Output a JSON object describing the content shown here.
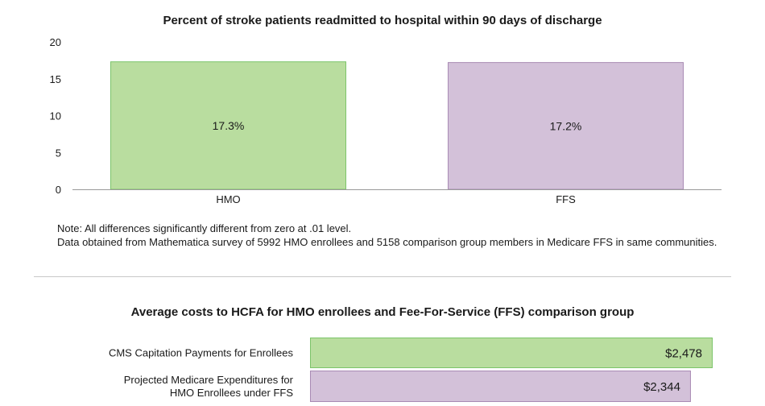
{
  "colors": {
    "green": "#b9dd9f",
    "green_border": "#7cc46a",
    "purple": "#d3c1d9",
    "purple_border": "#a98bb4",
    "axis": "#9a9a9a"
  },
  "chart_data": [
    {
      "type": "bar",
      "title": "Percent of stroke patients readmitted to hospital within 90 days of discharge",
      "categories": [
        "HMO",
        "FFS"
      ],
      "values": [
        17.3,
        17.2
      ],
      "data_labels": [
        "17.3%",
        "17.2%"
      ],
      "bar_colors": [
        "#b9dd9f",
        "#d3c1d9"
      ],
      "ylim": [
        0,
        20
      ],
      "yticks": [
        0,
        5,
        10,
        15,
        20
      ],
      "xlabel": "",
      "ylabel": "",
      "grid": false
    },
    {
      "type": "bar",
      "orientation": "horizontal",
      "title": "Average costs to HCFA for HMO enrollees and Fee-For-Service (FFS) comparison group",
      "categories": [
        "CMS Capitation Payments for Enrollees",
        "Projected Medicare Expenditures for HMO Enrollees under FFS"
      ],
      "category_lines": [
        [
          "CMS Capitation Payments for Enrollees"
        ],
        [
          "Projected Medicare Expenditures for",
          "HMO Enrollees under FFS"
        ]
      ],
      "values": [
        2478,
        2344
      ],
      "data_labels": [
        "$2,478",
        "$2,344"
      ],
      "bar_colors": [
        "#b9dd9f",
        "#d3c1d9"
      ],
      "xlim": [
        0,
        2478
      ],
      "grid": false
    }
  ],
  "notes": [
    "Note: All differences significantly different from zero at .01 level.",
    "Data obtained from Mathematica survey of 5992 HMO enrollees and 5158 comparison group members in Medicare FFS in same communities."
  ]
}
